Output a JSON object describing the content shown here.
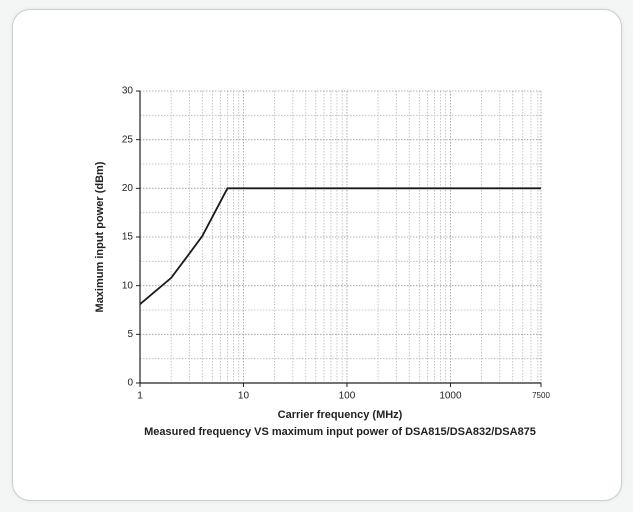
{
  "chart_data": {
    "type": "line",
    "caption": "Measured frequency VS maximum input power of DSA815/DSA832/DSA875",
    "xlabel": "Carrier frequency (MHz)",
    "ylabel": "Maximum input power (dBm)",
    "x": [
      1,
      2,
      3,
      4,
      7,
      7500
    ],
    "series": [
      {
        "name": "Maximum input power",
        "color": "#1a1a1a",
        "values": [
          8.1,
          10.8,
          13.3,
          15.1,
          20,
          20
        ]
      }
    ],
    "xscale": "log",
    "xlim": [
      1,
      7500
    ],
    "xticks": [
      1,
      10,
      100,
      1000,
      7500
    ],
    "xminorticks": [
      2,
      3,
      4,
      5,
      6,
      7,
      8,
      9,
      20,
      30,
      40,
      50,
      60,
      70,
      80,
      90,
      200,
      300,
      400,
      500,
      600,
      700,
      800,
      900,
      2000,
      3000,
      4000,
      5000,
      6000,
      7000
    ],
    "ylim": [
      0,
      30
    ],
    "yticks": [
      0,
      5,
      10,
      15,
      20,
      25,
      30
    ],
    "yminorticks": [
      2.5,
      7.5,
      12.5,
      17.5,
      22.5,
      27.5
    ],
    "grid": true
  }
}
